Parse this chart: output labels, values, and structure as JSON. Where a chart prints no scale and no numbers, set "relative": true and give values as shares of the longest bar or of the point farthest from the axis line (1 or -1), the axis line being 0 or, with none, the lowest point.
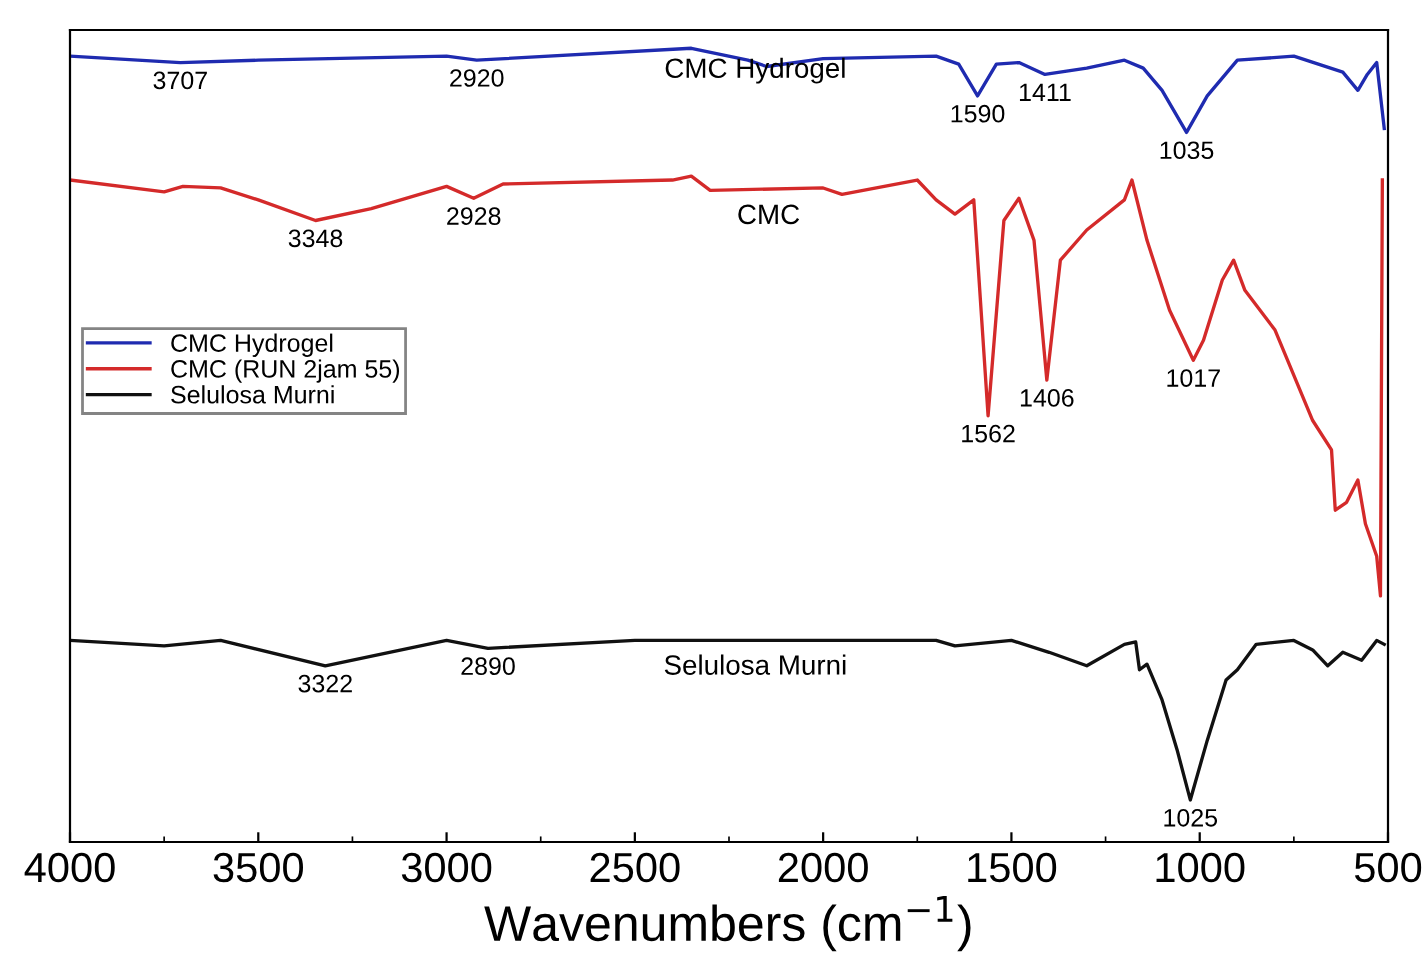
{
  "chart_data": {
    "type": "line",
    "relative": true,
    "xlabel": "Wavenumbers (cm$^{−1}$)",
    "xlim": [
      4000,
      500
    ],
    "xticks": [
      4000,
      3500,
      3000,
      2500,
      2000,
      1500,
      1000,
      500
    ],
    "tick_labels": "x",
    "grid": false,
    "legend": "left",
    "marker": "none",
    "line_style": "solid",
    "series": [
      {
        "name": "CMC Hydrogel",
        "color": "#1f2bb0",
        "x": [
          4000,
          3707,
          3500,
          3000,
          2920,
          2350,
          2200,
          2150,
          2000,
          1700,
          1640,
          1590,
          1540,
          1480,
          1411,
          1300,
          1200,
          1150,
          1100,
          1035,
          980,
          900,
          750,
          620,
          580,
          555,
          530,
          510
        ],
        "values": [
          0.99,
          0.982,
          0.985,
          0.99,
          0.985,
          1.0,
          0.985,
          0.977,
          0.987,
          0.99,
          0.98,
          0.94,
          0.98,
          0.982,
          0.967,
          0.975,
          0.985,
          0.975,
          0.947,
          0.894,
          0.94,
          0.985,
          0.99,
          0.97,
          0.947,
          0.967,
          0.982,
          0.899
        ]
      },
      {
        "name": "CMC (RUN 2jam 55)",
        "color": "#d42a2a",
        "x": [
          4000,
          3750,
          3700,
          3600,
          3500,
          3348,
          3200,
          3000,
          2928,
          2850,
          2400,
          2350,
          2300,
          2000,
          1950,
          1750,
          1700,
          1650,
          1600,
          1562,
          1520,
          1480,
          1440,
          1406,
          1370,
          1300,
          1200,
          1180,
          1140,
          1080,
          1017,
          990,
          940,
          910,
          880,
          800,
          700,
          650,
          640,
          610,
          580,
          560,
          530,
          520,
          515
        ],
        "values": [
          0.834,
          0.819,
          0.826,
          0.824,
          0.809,
          0.783,
          0.798,
          0.826,
          0.811,
          0.829,
          0.834,
          0.839,
          0.821,
          0.824,
          0.816,
          0.834,
          0.809,
          0.791,
          0.809,
          0.537,
          0.783,
          0.811,
          0.758,
          0.582,
          0.733,
          0.771,
          0.809,
          0.834,
          0.758,
          0.67,
          0.607,
          0.632,
          0.708,
          0.733,
          0.695,
          0.645,
          0.531,
          0.494,
          0.418,
          0.428,
          0.456,
          0.401,
          0.36,
          0.31,
          0.834
        ]
      },
      {
        "name": "Selulosa Murni",
        "color": "#111111",
        "x": [
          4000,
          3750,
          3600,
          3322,
          3000,
          2890,
          2500,
          1700,
          1650,
          1500,
          1400,
          1300,
          1200,
          1170,
          1160,
          1140,
          1100,
          1060,
          1025,
          980,
          930,
          900,
          850,
          750,
          700,
          660,
          620,
          570,
          530,
          510
        ],
        "values": [
          0.254,
          0.247,
          0.254,
          0.222,
          0.254,
          0.244,
          0.254,
          0.254,
          0.247,
          0.254,
          0.239,
          0.222,
          0.249,
          0.252,
          0.217,
          0.224,
          0.179,
          0.116,
          0.053,
          0.128,
          0.204,
          0.217,
          0.249,
          0.254,
          0.242,
          0.222,
          0.239,
          0.229,
          0.254,
          0.249
        ]
      }
    ],
    "annotations": [
      {
        "text": "3707",
        "x": 3707,
        "y": 0.982
      },
      {
        "text": "2920",
        "x": 2920,
        "y": 0.985
      },
      {
        "text": "1590",
        "x": 1590,
        "y": 0.94
      },
      {
        "text": "1411",
        "x": 1411,
        "y": 0.967
      },
      {
        "text": "1035",
        "x": 1035,
        "y": 0.894
      },
      {
        "text": "3348",
        "x": 3348,
        "y": 0.783
      },
      {
        "text": "2928",
        "x": 2928,
        "y": 0.811
      },
      {
        "text": "1562",
        "x": 1562,
        "y": 0.537
      },
      {
        "text": "1406",
        "x": 1406,
        "y": 0.582
      },
      {
        "text": "1017",
        "x": 1017,
        "y": 0.607
      },
      {
        "text": "3322",
        "x": 3322,
        "y": 0.222
      },
      {
        "text": "2890",
        "x": 2890,
        "y": 0.244
      },
      {
        "text": "1025",
        "x": 1025,
        "y": 0.053
      },
      "CMC Hydrogel",
      "CMC",
      "Selulosa Murni"
    ]
  }
}
